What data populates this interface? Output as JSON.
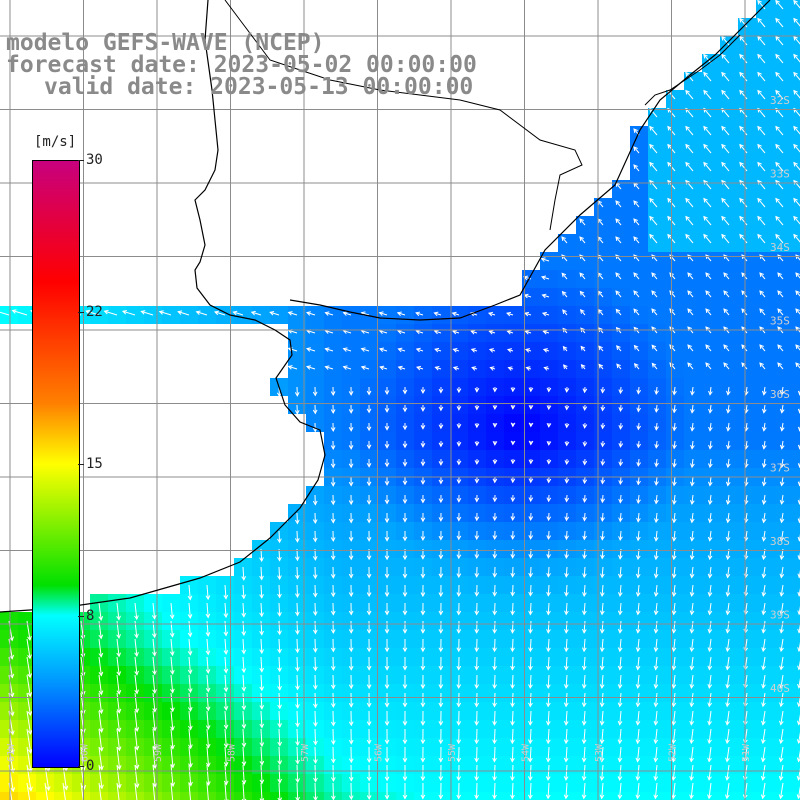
{
  "title": {
    "model": "modelo GEFS-WAVE (NCEP)",
    "forecast": "forecast date: 2023-05-02 00:00:00",
    "valid": "valid date: 2023-05-13 00:00:00"
  },
  "colorbar": {
    "unit": "[m/s]",
    "min": 0,
    "max": 30,
    "ticks": [
      "30",
      "22",
      "15",
      "8",
      "0"
    ],
    "stops": [
      {
        "value": 0,
        "color": "#0000ff"
      },
      {
        "value": 4,
        "color": "#00a0ff"
      },
      {
        "value": 8,
        "color": "#00ffff"
      },
      {
        "value": 10,
        "color": "#00e000"
      },
      {
        "value": 15,
        "color": "#ffff00"
      },
      {
        "value": 18,
        "color": "#ff8000"
      },
      {
        "value": 24,
        "color": "#ff0000"
      },
      {
        "value": 30,
        "color": "#c8007e"
      }
    ]
  },
  "map": {
    "lat_labels": [
      "32S",
      "33S",
      "34S",
      "35S",
      "36S",
      "37S",
      "38S",
      "39S",
      "40S"
    ],
    "lon_labels": [
      "61W",
      "60W",
      "59W",
      "58W",
      "57W",
      "56W",
      "55W",
      "54W",
      "53W",
      "52W",
      "51W"
    ],
    "grid_color": "#8c8c8c",
    "coast_color": "#000000",
    "arrow_color": "#ffffff"
  }
}
